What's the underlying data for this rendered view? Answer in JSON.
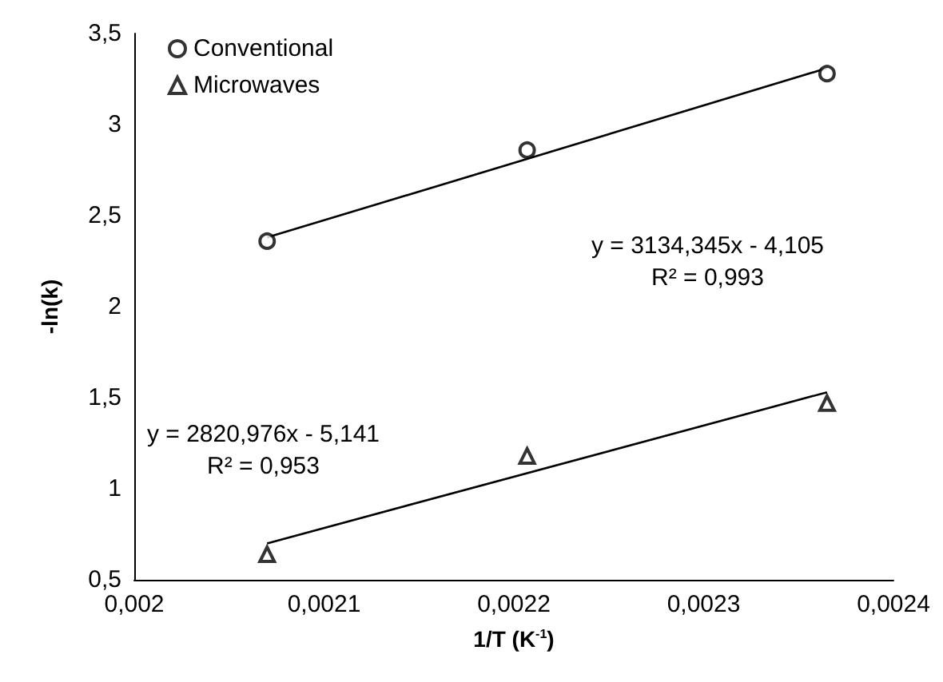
{
  "chart_data": {
    "type": "scatter",
    "xlabel": "1/T (K$^{-1}$)",
    "ylabel": "-ln(k)",
    "xlim": [
      0.002,
      0.0024
    ],
    "xticks": [
      {
        "value": 0.002,
        "label": "0,002"
      },
      {
        "value": 0.0021,
        "label": "0,0021"
      },
      {
        "value": 0.0022,
        "label": "0,0022"
      },
      {
        "value": 0.0023,
        "label": "0,0023"
      },
      {
        "value": 0.0024,
        "label": "0,0024"
      }
    ],
    "ylim": [
      0.5,
      3.5
    ],
    "yticks": [
      {
        "value": 0.5,
        "label": "0,5"
      },
      1,
      {
        "value": 1.5,
        "label": "1,5"
      },
      2,
      {
        "value": 2.5,
        "label": "2,5"
      },
      3,
      {
        "value": 3.5,
        "label": "3,5"
      }
    ],
    "series": [
      {
        "name": "Conventional",
        "color": "#000000",
        "marker": "circle",
        "x": [
          0.00207,
          0.002207,
          0.002365
        ],
        "values": [
          2.36,
          2.86,
          3.28
        ]
      },
      {
        "name": "Microwaves",
        "color": "#000000",
        "marker": "triangle",
        "x": [
          0.00207,
          0.002207,
          0.002365
        ],
        "values": [
          0.64,
          1.18,
          1.47
        ]
      },
      {
        "type": "line",
        "color": "#000000",
        "marker": "none",
        "x": [
          0.00207,
          0.002365
        ],
        "values": [
          2.38,
          3.31
        ]
      },
      {
        "type": "line",
        "color": "#000000",
        "marker": "none",
        "x": [
          0.00207,
          0.002365
        ],
        "values": [
          0.7,
          1.53
        ]
      }
    ],
    "annotations": [
      "y = 3134,345x - 4,105\nR² = 0,993",
      "y = 2820,976x - 5,141\nR² = 0,953"
    ],
    "legend": "top left",
    "grid": false
  }
}
